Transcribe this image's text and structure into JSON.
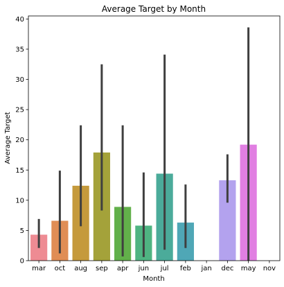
{
  "chart_data": {
    "type": "bar",
    "title": "Average Target by Month",
    "xlabel": "Month",
    "ylabel": "Average Target",
    "ylim": [
      0,
      40.5
    ],
    "yticks": [
      0,
      5,
      10,
      15,
      20,
      25,
      30,
      35,
      40
    ],
    "yticks_labels": [
      "0",
      "5",
      "10",
      "15",
      "20",
      "25",
      "30",
      "35",
      "40"
    ],
    "grid": false,
    "categories": [
      "mar",
      "oct",
      "aug",
      "sep",
      "apr",
      "jun",
      "jul",
      "feb",
      "jan",
      "dec",
      "may",
      "nov"
    ],
    "values": [
      4.3,
      6.6,
      12.4,
      17.9,
      8.9,
      5.8,
      14.4,
      6.3,
      null,
      13.3,
      19.2,
      null
    ],
    "error_low": [
      2.1,
      1.2,
      5.7,
      8.3,
      0.7,
      0.6,
      1.8,
      2.1,
      null,
      9.6,
      0.0,
      null
    ],
    "error_high": [
      6.9,
      14.9,
      22.4,
      32.5,
      22.4,
      14.6,
      34.1,
      12.6,
      null,
      17.6,
      38.6,
      null
    ],
    "colors": [
      "#ee8b93",
      "#e08d55",
      "#c59a3c",
      "#a4a23a",
      "#62b04a",
      "#4fb482",
      "#4bab9a",
      "#4fa7b6",
      "#5aa9e0",
      "#b3a2ee",
      "#e17fe2",
      "#ec8cbf"
    ],
    "error_color": "#3f3f3f"
  }
}
